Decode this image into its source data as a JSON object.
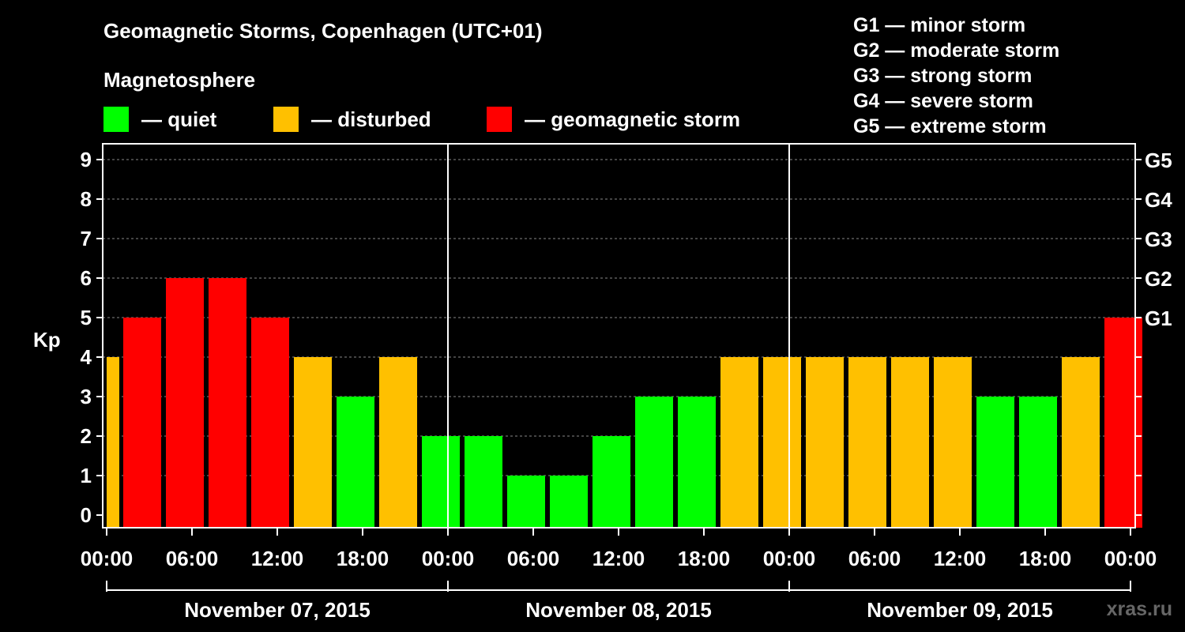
{
  "chart_data": {
    "type": "bar",
    "title": "Geomagnetic Storms, Copenhagen (UTC+01)",
    "subtitle": "Magnetosphere",
    "ylabel": "Kp",
    "ylim": [
      0,
      9
    ],
    "yticks": [
      "0",
      "1",
      "2",
      "3",
      "4",
      "5",
      "6",
      "7",
      "8",
      "9"
    ],
    "right_ticks": [
      {
        "value": 5,
        "label": "G1"
      },
      {
        "value": 6,
        "label": "G2"
      },
      {
        "value": 7,
        "label": "G3"
      },
      {
        "value": 8,
        "label": "G4"
      },
      {
        "value": 9,
        "label": "G5"
      }
    ],
    "xticks": [
      "00:00",
      "06:00",
      "12:00",
      "18:00",
      "00:00",
      "06:00",
      "12:00",
      "18:00",
      "00:00",
      "06:00",
      "12:00",
      "18:00",
      "00:00"
    ],
    "dates": [
      "November 07, 2015",
      "November 08, 2015",
      "November 09, 2015"
    ],
    "categories": [
      "Nov 07 00:00",
      "Nov 07 03:00",
      "Nov 07 06:00",
      "Nov 07 09:00",
      "Nov 07 12:00",
      "Nov 07 15:00",
      "Nov 07 18:00",
      "Nov 07 21:00",
      "Nov 08 00:00",
      "Nov 08 03:00",
      "Nov 08 06:00",
      "Nov 08 09:00",
      "Nov 08 12:00",
      "Nov 08 15:00",
      "Nov 08 18:00",
      "Nov 08 21:00",
      "Nov 09 00:00",
      "Nov 09 03:00",
      "Nov 09 06:00",
      "Nov 09 09:00",
      "Nov 09 12:00",
      "Nov 09 15:00",
      "Nov 09 18:00",
      "Nov 09 21:00"
    ],
    "values": [
      5,
      6,
      6,
      5,
      4,
      3,
      4,
      2,
      2,
      1,
      1,
      2,
      3,
      3,
      4,
      4,
      4,
      4,
      4,
      4,
      3,
      3,
      4,
      5
    ],
    "leading_partial_value": 4,
    "grid": true,
    "legend": [
      {
        "label": "— quiet",
        "color": "#00ff00"
      },
      {
        "label": "— disturbed",
        "color": "#ffc000"
      },
      {
        "label": "— geomagnetic storm",
        "color": "#ff0000"
      }
    ],
    "storm_scale": [
      "G1 — minor storm",
      "G2 — moderate storm",
      "G3 — strong storm",
      "G4 — severe storm",
      "G5 — extreme storm"
    ]
  },
  "colors": {
    "quiet": "#00ff00",
    "disturbed": "#ffc000",
    "storm": "#ff0000",
    "background": "#000000"
  },
  "watermark": "xras.ru"
}
